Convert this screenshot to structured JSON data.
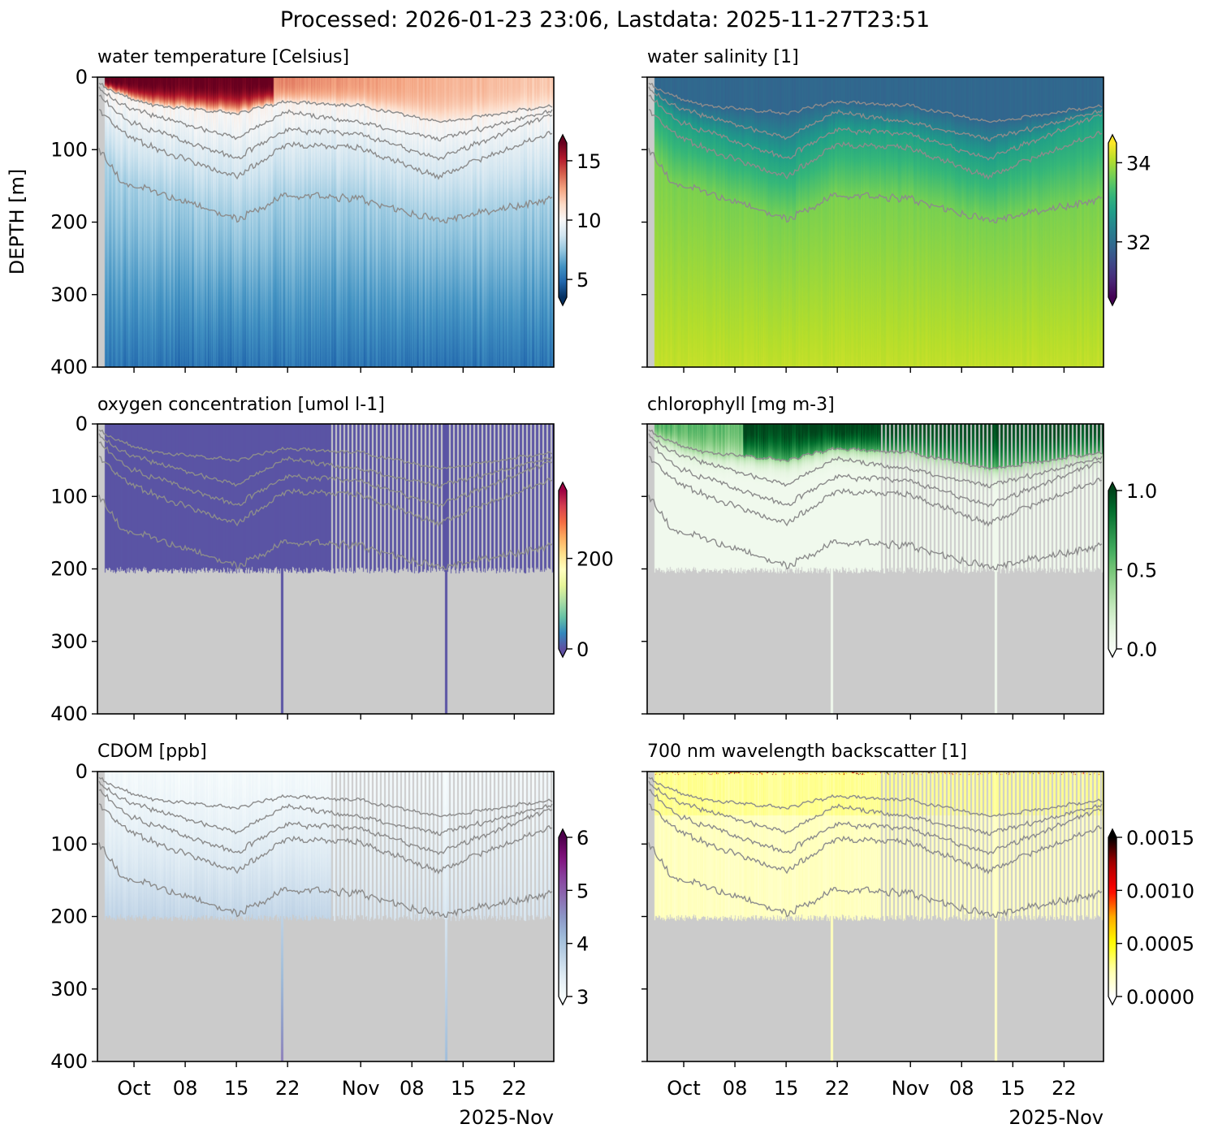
{
  "title": "Processed: 2026-01-23 23:06, Lastdata: 2025-11-27T23:51",
  "ylabel": "DEPTH [m]",
  "x_offset_label": "2025-Nov",
  "colors": {
    "missing": "#cbcbcb",
    "contour": "#8c8c8c",
    "frame": "#000000"
  },
  "chart_data": {
    "type": "heatmap",
    "x_axis": "days since 2025-10-01",
    "xlim": [
      -5,
      57.4
    ],
    "x_ticks": [
      {
        "day": 0,
        "label": "Oct"
      },
      {
        "day": 7,
        "label": "08"
      },
      {
        "day": 14,
        "label": "15"
      },
      {
        "day": 21,
        "label": "22"
      },
      {
        "day": 31,
        "label": "Nov"
      },
      {
        "day": 38,
        "label": "08"
      },
      {
        "day": 45,
        "label": "15"
      },
      {
        "day": 52,
        "label": "22"
      }
    ],
    "ylim": [
      400,
      0
    ],
    "y_ticks": [
      {
        "v": 0,
        "label": "0"
      },
      {
        "v": 100,
        "label": "100"
      },
      {
        "v": 200,
        "label": "200"
      },
      {
        "v": 300,
        "label": "300"
      },
      {
        "v": 400,
        "label": "400"
      }
    ],
    "contours": [
      {
        "days": [
          -4.8,
          -1.7,
          1.7,
          13.9,
          20.8,
          30.8,
          41.7,
          57.4
        ],
        "depths": [
          8,
          25,
          37,
          50,
          34,
          39,
          62,
          39
        ]
      },
      {
        "days": [
          -4.8,
          -1.7,
          1.7,
          13.9,
          20.8,
          30.8,
          41.7,
          57.4
        ],
        "depths": [
          15,
          38,
          50,
          84,
          48,
          62,
          86,
          45
        ]
      },
      {
        "days": [
          -4.8,
          -1.7,
          1.7,
          13.9,
          20.8,
          30.8,
          41.7,
          57.4
        ],
        "depths": [
          25,
          55,
          71,
          112,
          73,
          78,
          112,
          50
        ]
      },
      {
        "days": [
          -4.8,
          -1.7,
          1.7,
          13.9,
          20.8,
          30.8,
          41.7,
          57.4
        ],
        "depths": [
          45,
          75,
          93,
          138,
          93,
          97,
          138,
          73
        ]
      },
      {
        "days": [
          -4.8,
          -1.7,
          1.7,
          13.9,
          20.8,
          30.8,
          41.7,
          57.4
        ],
        "depths": [
          100,
          146,
          153,
          196,
          162,
          168,
          198,
          168
        ]
      }
    ],
    "sparse_sampling_after_day": 26.8,
    "full_depth_profiles_days": [
      20.2,
      42.6
    ],
    "panels": [
      {
        "key": "temperature",
        "title": "water temperature [Celsius]",
        "cmap": "RdBu_r",
        "clim": [
          3.5,
          16.5
        ],
        "extend": "both",
        "max_depth": 400,
        "cbar_ticks": [
          {
            "v": 5,
            "label": "5"
          },
          {
            "v": 10,
            "label": "10"
          },
          {
            "v": 15,
            "label": "15"
          }
        ]
      },
      {
        "key": "salinity",
        "title": "water salinity [1]",
        "cmap": "viridis",
        "clim": [
          30.6,
          34.5
        ],
        "extend": "both",
        "max_depth": 400,
        "cbar_ticks": [
          {
            "v": 32,
            "label": "32"
          },
          {
            "v": 34,
            "label": "34"
          }
        ]
      },
      {
        "key": "oxygen",
        "title": "oxygen concentration [umol l-1]",
        "cmap": "Spectral_r",
        "clim": [
          0,
          350
        ],
        "extend": "both",
        "max_depth": 200,
        "cbar_ticks": [
          {
            "v": 0,
            "label": "0"
          },
          {
            "v": 200,
            "label": "200"
          }
        ]
      },
      {
        "key": "chlorophyll",
        "title": "chlorophyll [mg m-3]",
        "cmap": "Greens",
        "clim": [
          0,
          1.0
        ],
        "extend": "both",
        "max_depth": 200,
        "cbar_ticks": [
          {
            "v": 0,
            "label": "0.0"
          },
          {
            "v": 0.5,
            "label": "0.5"
          },
          {
            "v": 1.0,
            "label": "1.0"
          }
        ]
      },
      {
        "key": "cdom",
        "title": "CDOM [ppb]",
        "cmap": "BuPu",
        "clim": [
          3,
          6
        ],
        "extend": "both",
        "max_depth": 200,
        "cbar_ticks": [
          {
            "v": 3,
            "label": "3"
          },
          {
            "v": 4,
            "label": "4"
          },
          {
            "v": 5,
            "label": "5"
          },
          {
            "v": 6,
            "label": "6"
          }
        ]
      },
      {
        "key": "backscatter",
        "title": "700 nm wavelength backscatter [1]",
        "cmap": "hot_r",
        "clim": [
          0,
          0.0015
        ],
        "extend": "both",
        "max_depth": 200,
        "cbar_ticks": [
          {
            "v": 0,
            "label": "0.0000"
          },
          {
            "v": 0.0005,
            "label": "0.0005"
          },
          {
            "v": 0.001,
            "label": "0.0010"
          },
          {
            "v": 0.0015,
            "label": "0.0015"
          }
        ]
      }
    ]
  }
}
